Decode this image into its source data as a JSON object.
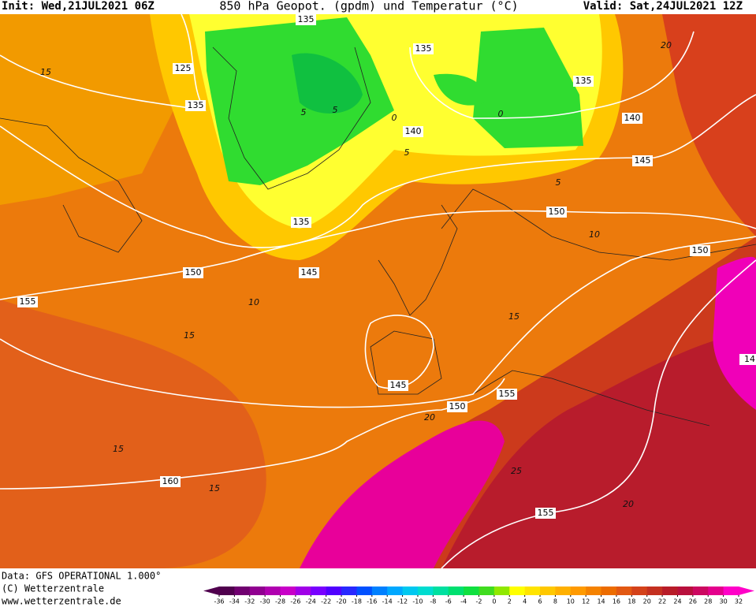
{
  "header": {
    "init": "Init: Wed,21JUL2021 06Z",
    "title": "850 hPa Geopot. (gpdm) und Temperatur (°C)",
    "valid": "Valid: Sat,24JUL2021 12Z"
  },
  "geopotential_labels": [
    135,
    125,
    135,
    135,
    140,
    135,
    140,
    145,
    135,
    150,
    145,
    150,
    155,
    150,
    145,
    150,
    155,
    160,
    155,
    14
  ],
  "temperature_labels": [
    15,
    5,
    0,
    5,
    0,
    5,
    5,
    10,
    10,
    15,
    15,
    15,
    15,
    20,
    20,
    25,
    20
  ],
  "footer": {
    "data": "Data: GFS OPERATIONAL 1.000°",
    "copyright": "(C) Wetterzentrale",
    "url": "www.wetterzentrale.de"
  },
  "colorbar": {
    "labels": [
      -36,
      -34,
      -32,
      -30,
      -28,
      -26,
      -24,
      -22,
      -20,
      -18,
      -16,
      -14,
      -12,
      -10,
      -8,
      -6,
      -4,
      -2,
      0,
      2,
      4,
      6,
      8,
      10,
      12,
      14,
      16,
      18,
      20,
      22,
      24,
      26,
      28,
      30,
      32
    ],
    "colors": [
      "#50004e",
      "#700070",
      "#900090",
      "#b000b0",
      "#c800c8",
      "#a000e8",
      "#7800ff",
      "#5000ff",
      "#2828ff",
      "#0050ff",
      "#0080ff",
      "#00a8ff",
      "#00c8f0",
      "#00dcd0",
      "#00e0a0",
      "#00e070",
      "#10e040",
      "#40dc20",
      "#90e800",
      "#ffff00",
      "#ffe400",
      "#ffc800",
      "#ffb000",
      "#ff9a00",
      "#f58200",
      "#ec6c00",
      "#e25812",
      "#d4421a",
      "#c43020",
      "#b81c28",
      "#b8103c",
      "#cc0860",
      "#e4008c",
      "#ff00c8"
    ]
  }
}
